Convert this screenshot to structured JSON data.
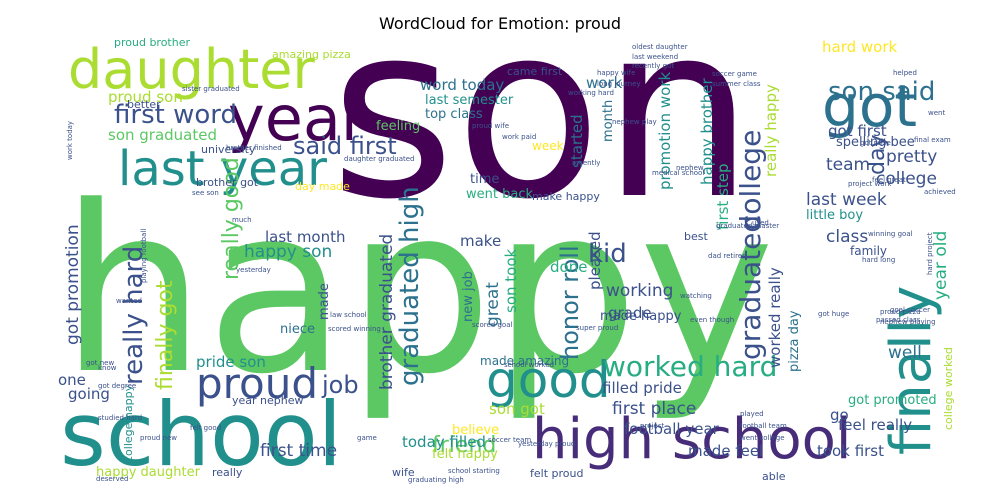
{
  "title": "WordCloud for Emotion: proud",
  "colors": {
    "dark_purple": "#440154",
    "purple": "#472c7a",
    "indigo": "#3b518b",
    "blue": "#2c718e",
    "teal": "#21908d",
    "green": "#27ad81",
    "light_green": "#5cc863",
    "lime": "#aadc32",
    "yellow": "#fde725"
  },
  "words": [
    {
      "text": "son",
      "color": "#440154"
    },
    {
      "text": "happy",
      "color": "#5cc863"
    },
    {
      "text": "daughter",
      "color": "#aadc32"
    },
    {
      "text": "school",
      "color": "#21908d"
    },
    {
      "text": "high school",
      "color": "#472c7a"
    },
    {
      "text": "got",
      "color": "#2c718e"
    },
    {
      "text": "year",
      "color": "#440154"
    },
    {
      "text": "last year",
      "color": "#21908d"
    },
    {
      "text": "proud",
      "color": "#3b518b"
    },
    {
      "text": "good",
      "color": "#21908d"
    },
    {
      "text": "finally",
      "color": "#21908d"
    },
    {
      "text": "son said",
      "color": "#2c718e"
    },
    {
      "text": "first word",
      "color": "#3b518b"
    },
    {
      "text": "said first",
      "color": "#3b518b"
    },
    {
      "text": "worked hard",
      "color": "#27ad81"
    },
    {
      "text": "graduated high",
      "color": "#2c718e"
    },
    {
      "text": "college",
      "color": "#3b518b"
    },
    {
      "text": "graduated",
      "color": "#3b518b"
    },
    {
      "text": "really hard",
      "color": "#3b518b"
    },
    {
      "text": "finally got",
      "color": "#aadc32"
    },
    {
      "text": "really good",
      "color": "#5cc863"
    },
    {
      "text": "honor roll",
      "color": "#2c718e"
    },
    {
      "text": "friend",
      "color": "#5cc863"
    },
    {
      "text": "hard work",
      "color": "#fde725"
    },
    {
      "text": "got first",
      "color": "#3b518b"
    },
    {
      "text": "day",
      "color": "#3b518b"
    },
    {
      "text": "kid",
      "color": "#3b518b"
    },
    {
      "text": "job",
      "color": "#3b518b"
    },
    {
      "text": "son graduated",
      "color": "#5cc863"
    },
    {
      "text": "proud son",
      "color": "#aadc32"
    },
    {
      "text": "word today",
      "color": "#2c718e"
    },
    {
      "text": "last semester",
      "color": "#21908d"
    },
    {
      "text": "top class",
      "color": "#2c718e"
    },
    {
      "text": "work",
      "color": "#2c718e"
    },
    {
      "text": "month",
      "color": "#2c718e"
    },
    {
      "text": "started",
      "color": "#2c718e"
    },
    {
      "text": "promotion work",
      "color": "#21908d"
    },
    {
      "text": "happy brother",
      "color": "#21908d"
    },
    {
      "text": "first step",
      "color": "#27ad81"
    },
    {
      "text": "really happy",
      "color": "#aadc32"
    },
    {
      "text": "team",
      "color": "#3b518b"
    },
    {
      "text": "pretty",
      "color": "#3b518b"
    },
    {
      "text": "college",
      "color": "#3b518b"
    },
    {
      "text": "last week",
      "color": "#3b518b"
    },
    {
      "text": "little boy",
      "color": "#21908d"
    },
    {
      "text": "class",
      "color": "#3b518b"
    },
    {
      "text": "year old",
      "color": "#27ad81"
    },
    {
      "text": "family",
      "color": "#3b518b"
    },
    {
      "text": "last month",
      "color": "#3b518b"
    },
    {
      "text": "happy son",
      "color": "#21908d"
    },
    {
      "text": "got promotion",
      "color": "#3b518b"
    },
    {
      "text": "brother graduated",
      "color": "#3b518b"
    },
    {
      "text": "new job",
      "color": "#2c718e"
    },
    {
      "text": "great",
      "color": "#2c718e"
    },
    {
      "text": "son took",
      "color": "#27ad81"
    },
    {
      "text": "pleased",
      "color": "#3b518b"
    },
    {
      "text": "made happy",
      "color": "#3b518b"
    },
    {
      "text": "working",
      "color": "#3b518b"
    },
    {
      "text": "grade",
      "color": "#3b518b"
    },
    {
      "text": "worked really",
      "color": "#3b518b"
    },
    {
      "text": "pizza day",
      "color": "#2c718e"
    },
    {
      "text": "well",
      "color": "#2c718e"
    },
    {
      "text": "pride son",
      "color": "#21908d"
    },
    {
      "text": "filled pride",
      "color": "#3b518b"
    },
    {
      "text": "first place",
      "color": "#3b518b"
    },
    {
      "text": "football year",
      "color": "#3b518b"
    },
    {
      "text": "son got",
      "color": "#aadc32"
    },
    {
      "text": "believe",
      "color": "#fde725"
    },
    {
      "text": "today filled",
      "color": "#21908d"
    },
    {
      "text": "felt happy",
      "color": "#aadc32"
    },
    {
      "text": "first time",
      "color": "#3b518b"
    },
    {
      "text": "made feel",
      "color": "#3b518b"
    },
    {
      "text": "took first",
      "color": "#3b518b"
    },
    {
      "text": "happy daughter",
      "color": "#aadc32"
    },
    {
      "text": "got promoted",
      "color": "#27ad81"
    },
    {
      "text": "feel really",
      "color": "#3b518b"
    },
    {
      "text": "going",
      "color": "#3b518b"
    },
    {
      "text": "one",
      "color": "#3b518b"
    },
    {
      "text": "make",
      "color": "#3b518b"
    },
    {
      "text": "done",
      "color": "#27ad81"
    },
    {
      "text": "niece",
      "color": "#2c718e"
    },
    {
      "text": "made",
      "color": "#3b518b"
    },
    {
      "text": "time",
      "color": "#3b518b"
    },
    {
      "text": "week",
      "color": "#fde725"
    },
    {
      "text": "went back",
      "color": "#27ad81"
    },
    {
      "text": "made amazing",
      "color": "#2c718e"
    },
    {
      "text": "feeling",
      "color": "#5cc863"
    },
    {
      "text": "university",
      "color": "#3b518b"
    },
    {
      "text": "brother got",
      "color": "#3b518b"
    },
    {
      "text": "day made",
      "color": "#fde725"
    },
    {
      "text": "came first",
      "color": "#3b518b"
    },
    {
      "text": "amazing pizza",
      "color": "#aadc32"
    },
    {
      "text": "proud brother",
      "color": "#27ad81"
    },
    {
      "text": "better",
      "color": "#3b518b"
    },
    {
      "text": "make happy",
      "color": "#3b518b"
    },
    {
      "text": "best",
      "color": "#3b518b"
    },
    {
      "text": "go",
      "color": "#3b518b"
    },
    {
      "text": "really",
      "color": "#3b518b"
    },
    {
      "text": "wife",
      "color": "#3b518b"
    },
    {
      "text": "year nephew",
      "color": "#3b518b"
    },
    {
      "text": "college happy",
      "color": "#21908d"
    },
    {
      "text": "spelling bee",
      "color": "#3b518b"
    },
    {
      "text": "college worked",
      "color": "#aadc32"
    },
    {
      "text": "felt proud",
      "color": "#3b518b"
    },
    {
      "text": "able",
      "color": "#3b518b"
    },
    {
      "text": "graduated master",
      "color": "#3b518b"
    },
    {
      "text": "medical school",
      "color": "#3b518b"
    },
    {
      "text": "soccer team",
      "color": "#3b518b"
    },
    {
      "text": "oldest daughter",
      "color": "#3b518b"
    },
    {
      "text": "last weekend",
      "color": "#3b518b"
    },
    {
      "text": "recently got",
      "color": "#3b518b"
    },
    {
      "text": "happy wife",
      "color": "#3b518b"
    },
    {
      "text": "long journey",
      "color": "#3b518b"
    },
    {
      "text": "working hard",
      "color": "#3b518b"
    },
    {
      "text": "proud wife",
      "color": "#3b518b"
    },
    {
      "text": "nephew play",
      "color": "#3b518b"
    },
    {
      "text": "soccer game",
      "color": "#3b518b"
    },
    {
      "text": "summer class",
      "color": "#3b518b"
    },
    {
      "text": "helped",
      "color": "#3b518b"
    },
    {
      "text": "went",
      "color": "#3b518b"
    },
    {
      "text": "final exam",
      "color": "#3b518b"
    },
    {
      "text": "got raise",
      "color": "#3b518b"
    },
    {
      "text": "project work",
      "color": "#3b518b"
    },
    {
      "text": "achieved",
      "color": "#3b518b"
    },
    {
      "text": "feel great",
      "color": "#3b518b"
    },
    {
      "text": "dad retired",
      "color": "#3b518b"
    },
    {
      "text": "used",
      "color": "#3b518b"
    },
    {
      "text": "winning goal",
      "color": "#3b518b"
    },
    {
      "text": "hard project",
      "color": "#3b518b"
    },
    {
      "text": "hard long",
      "color": "#3b518b"
    },
    {
      "text": "goal soccer",
      "color": "#3b518b"
    },
    {
      "text": "passed class",
      "color": "#3b518b"
    },
    {
      "text": "proud pizza",
      "color": "#3b518b"
    },
    {
      "text": "nephew playing",
      "color": "#3b518b"
    },
    {
      "text": "watching",
      "color": "#3b518b"
    },
    {
      "text": "even though",
      "color": "#3b518b"
    },
    {
      "text": "got huge",
      "color": "#3b518b"
    },
    {
      "text": "played",
      "color": "#3b518b"
    },
    {
      "text": "football team",
      "color": "#3b518b"
    },
    {
      "text": "went college",
      "color": "#3b518b"
    },
    {
      "text": "super proud",
      "color": "#3b518b"
    },
    {
      "text": "yesterday proud",
      "color": "#3b518b"
    },
    {
      "text": "school starting",
      "color": "#3b518b"
    },
    {
      "text": "graduating high",
      "color": "#3b518b"
    },
    {
      "text": "law school",
      "color": "#3b518b"
    },
    {
      "text": "scored winning",
      "color": "#3b518b"
    },
    {
      "text": "studied hard",
      "color": "#3b518b"
    },
    {
      "text": "proud new",
      "color": "#3b518b"
    },
    {
      "text": "got degree",
      "color": "#3b518b"
    },
    {
      "text": "deserved",
      "color": "#3b518b"
    },
    {
      "text": "wanted",
      "color": "#3b518b"
    },
    {
      "text": "know",
      "color": "#3b518b"
    },
    {
      "text": "yesterday",
      "color": "#3b518b"
    },
    {
      "text": "daughter graduated",
      "color": "#3b518b"
    },
    {
      "text": "brother finished",
      "color": "#3b518b"
    },
    {
      "text": "sister graduated",
      "color": "#3b518b"
    },
    {
      "text": "work today",
      "color": "#3b518b"
    },
    {
      "text": "see son",
      "color": "#3b518b"
    },
    {
      "text": "much",
      "color": "#3b518b"
    },
    {
      "text": "recently",
      "color": "#3b518b"
    },
    {
      "text": "scored goal",
      "color": "#3b518b"
    },
    {
      "text": "work paid",
      "color": "#3b518b"
    },
    {
      "text": "playing football",
      "color": "#3b518b"
    },
    {
      "text": "got new",
      "color": "#3b518b"
    },
    {
      "text": "felt good",
      "color": "#3b518b"
    },
    {
      "text": "game",
      "color": "#3b518b"
    },
    {
      "text": "project",
      "color": "#3b518b"
    },
    {
      "text": "school worked",
      "color": "#3b518b"
    },
    {
      "text": "nephew",
      "color": "#3b518b"
    }
  ]
}
